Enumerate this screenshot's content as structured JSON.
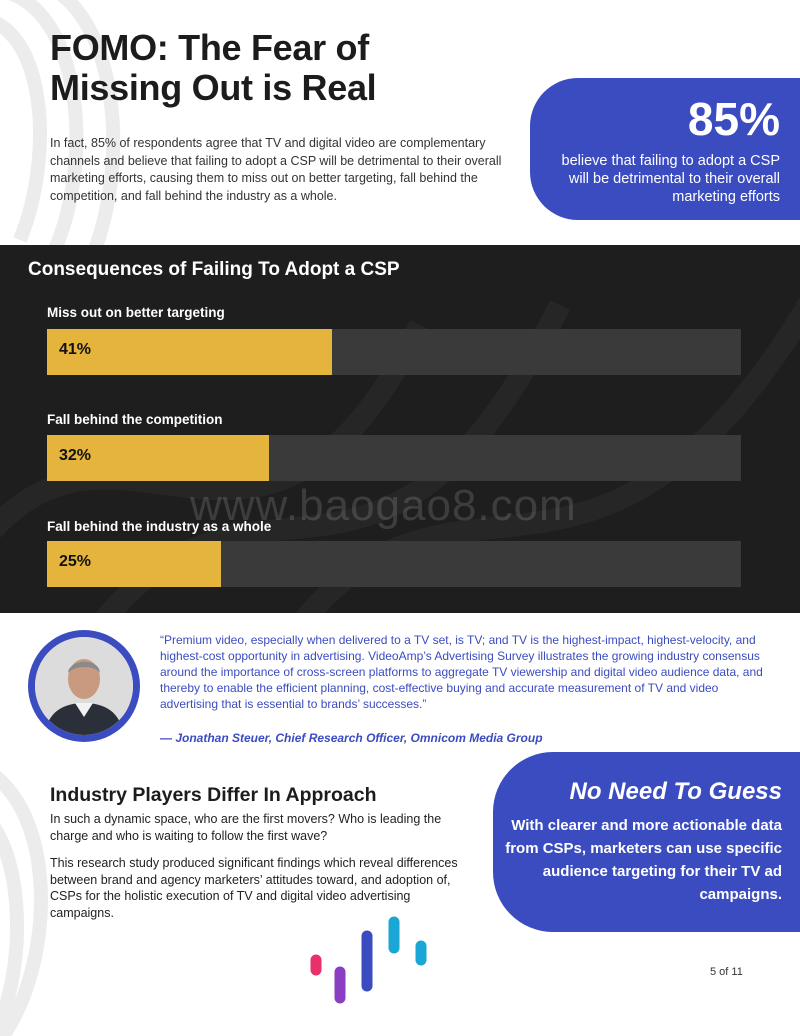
{
  "title": "FOMO: The Fear of Missing Out is Real",
  "intro": "In fact, 85% of respondents agree that TV and digital video are complementary channels and believe that failing to adopt a CSP will be detrimental to their overall marketing efforts, causing them to miss out on better targeting, fall behind the competition, and fall behind the industry as a whole.",
  "stat": {
    "value": "85%",
    "text": "believe that failing to adopt a CSP will be detrimental to their overall marketing efforts"
  },
  "colors": {
    "accent": "#3b4cc0",
    "bar": "#e5b43c",
    "track": "#3a3a3a",
    "panel": "#1e1e1e"
  },
  "chart_data": {
    "type": "bar",
    "title": "Consequences of Failing To Adopt a CSP",
    "categories": [
      "Miss out on better targeting",
      "Fall behind the competition",
      "Fall behind the industry as a whole"
    ],
    "values": [
      41,
      32,
      25
    ],
    "value_labels": [
      "41%",
      "32%",
      "25%"
    ],
    "xlim": [
      0,
      100
    ],
    "orientation": "horizontal"
  },
  "watermark": "www.baogao8.com",
  "quote": {
    "text": "“Premium video, especially when delivered to a TV set, is TV; and TV is the highest-impact, highest-velocity, and highest-cost opportunity in advertising. VideoAmp’s Advertising Survey illustrates the growing industry consensus around the importance of cross-screen platforms to aggregate TV viewership and digital video audience data, and thereby to enable the efficient planning, cost-effective buying and accurate measurement of TV and video advertising that is essential to brands’ successes.”",
    "author": "— Jonathan Steuer, Chief Research Officer, Omnicom Media Group"
  },
  "section": {
    "heading": "Industry Players Differ In Approach",
    "para1": "In such a dynamic space, who are the first movers? Who is leading the charge and who is waiting to follow the first wave?",
    "para2": "This research study produced significant findings which reveal differences between brand and agency marketers’ attitudes toward, and adoption of, CSPs for the holistic execution of TV and digital video advertising campaigns."
  },
  "callout2": {
    "title": "No Need To Guess",
    "text": "With clearer and more actionable data from CSPs, marketers can use specific audience targeting for their TV ad campaigns."
  },
  "page_number": "5 of 11",
  "icons": {
    "logo": "videoamp-logo-icon",
    "avatar": "person-photo"
  }
}
